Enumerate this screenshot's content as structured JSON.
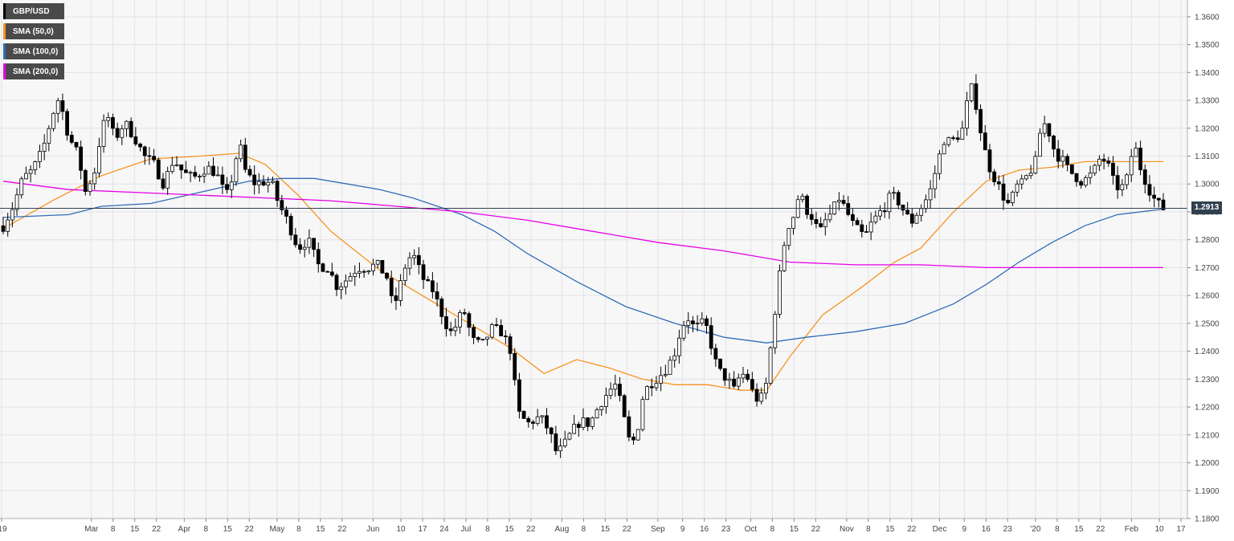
{
  "legend": [
    {
      "label": "GBP/USD",
      "color": "#000000"
    },
    {
      "label": "SMA (50,0)",
      "color": "#f7931e"
    },
    {
      "label": "SMA (100,0)",
      "color": "#2f6db5"
    },
    {
      "label": "SMA (200,0)",
      "color": "#e600e6"
    }
  ],
  "last_price_label": "1.2913",
  "colors": {
    "background": "#f7f7f8",
    "grid": "#e2e2e6",
    "up_candle": "#ffffff",
    "down_candle": "#000000",
    "price_line": "#30404f"
  },
  "chart_data": {
    "type": "candlestick",
    "instrument": "GBP/USD",
    "timeframe": "daily",
    "ylim": [
      1.18,
      1.366
    ],
    "y_ticks": [
      "1.1800",
      "1.1900",
      "1.2000",
      "1.2100",
      "1.2200",
      "1.2300",
      "1.2400",
      "1.2500",
      "1.2600",
      "1.2700",
      "1.2800",
      "1.2900",
      "1.3000",
      "1.3100",
      "1.3200",
      "1.3300",
      "1.3400",
      "1.3500",
      "1.3600"
    ],
    "x_ticks": [
      "'19",
      "Mar",
      "8",
      "15",
      "22",
      "Apr",
      "8",
      "15",
      "22",
      "May",
      "8",
      "15",
      "22",
      "Jun",
      "10",
      "17",
      "24",
      "Jul",
      "8",
      "15",
      "22",
      "Aug",
      "8",
      "15",
      "22",
      "Sep",
      "9",
      "16",
      "23",
      "Oct",
      "8",
      "15",
      "22",
      "Nov",
      "8",
      "15",
      "22",
      "Dec",
      "9",
      "16",
      "23",
      "'20",
      "8",
      "15",
      "22",
      "Feb",
      "10",
      "17"
    ],
    "last_price": 1.2913,
    "grid": true,
    "legend_position": "top-left",
    "price_path": [
      [
        0,
        1.285
      ],
      [
        3,
        1.292
      ],
      [
        6,
        1.302
      ],
      [
        9,
        1.305
      ],
      [
        12,
        1.312
      ],
      [
        15,
        1.325
      ],
      [
        17,
        1.331
      ],
      [
        20,
        1.317
      ],
      [
        23,
        1.31
      ],
      [
        25,
        1.297
      ],
      [
        28,
        1.305
      ],
      [
        30,
        1.32
      ],
      [
        32,
        1.324
      ],
      [
        34,
        1.316
      ],
      [
        37,
        1.322
      ],
      [
        40,
        1.317
      ],
      [
        43,
        1.31
      ],
      [
        46,
        1.307
      ],
      [
        49,
        1.3
      ],
      [
        52,
        1.309
      ],
      [
        55,
        1.304
      ],
      [
        58,
        1.302
      ],
      [
        62,
        1.306
      ],
      [
        65,
        1.304
      ],
      [
        68,
        1.295
      ],
      [
        70,
        1.303
      ],
      [
        72,
        1.315
      ],
      [
        74,
        1.304
      ],
      [
        77,
        1.3
      ],
      [
        80,
        1.301
      ],
      [
        82,
        1.3
      ],
      [
        84,
        1.293
      ],
      [
        87,
        1.286
      ],
      [
        90,
        1.277
      ],
      [
        93,
        1.28
      ],
      [
        96,
        1.271
      ],
      [
        99,
        1.27
      ],
      [
        102,
        1.263
      ],
      [
        105,
        1.266
      ],
      [
        108,
        1.27
      ],
      [
        111,
        1.27
      ],
      [
        114,
        1.271
      ],
      [
        117,
        1.267
      ],
      [
        119,
        1.255
      ],
      [
        121,
        1.263
      ],
      [
        123,
        1.272
      ],
      [
        125,
        1.275
      ],
      [
        127,
        1.269
      ],
      [
        129,
        1.264
      ],
      [
        131,
        1.262
      ],
      [
        133,
        1.256
      ],
      [
        135,
        1.25
      ],
      [
        137,
        1.246
      ],
      [
        139,
        1.252
      ],
      [
        141,
        1.254
      ],
      [
        143,
        1.244
      ],
      [
        146,
        1.242
      ],
      [
        149,
        1.248
      ],
      [
        152,
        1.247
      ],
      [
        155,
        1.24
      ],
      [
        157,
        1.218
      ],
      [
        160,
        1.214
      ],
      [
        163,
        1.216
      ],
      [
        165,
        1.215
      ],
      [
        167,
        1.21
      ],
      [
        169,
        1.203
      ],
      [
        171,
        1.206
      ],
      [
        173,
        1.21
      ],
      [
        176,
        1.215
      ],
      [
        179,
        1.214
      ],
      [
        182,
        1.221
      ],
      [
        185,
        1.226
      ],
      [
        187,
        1.228
      ],
      [
        189,
        1.218
      ],
      [
        191,
        1.208
      ],
      [
        193,
        1.208
      ],
      [
        195,
        1.223
      ],
      [
        197,
        1.228
      ],
      [
        199,
        1.23
      ],
      [
        201,
        1.232
      ],
      [
        203,
        1.235
      ],
      [
        205,
        1.24
      ],
      [
        207,
        1.249
      ],
      [
        209,
        1.252
      ],
      [
        211,
        1.248
      ],
      [
        213,
        1.25
      ],
      [
        215,
        1.248
      ],
      [
        217,
        1.237
      ],
      [
        219,
        1.232
      ],
      [
        221,
        1.23
      ],
      [
        223,
        1.226
      ],
      [
        225,
        1.232
      ],
      [
        227,
        1.231
      ],
      [
        229,
        1.224
      ],
      [
        231,
        1.222
      ],
      [
        233,
        1.229
      ],
      [
        235,
        1.25
      ],
      [
        237,
        1.268
      ],
      [
        239,
        1.284
      ],
      [
        241,
        1.288
      ],
      [
        243,
        1.297
      ],
      [
        245,
        1.291
      ],
      [
        247,
        1.288
      ],
      [
        249,
        1.282
      ],
      [
        251,
        1.287
      ],
      [
        253,
        1.29
      ],
      [
        255,
        1.295
      ],
      [
        257,
        1.291
      ],
      [
        259,
        1.286
      ],
      [
        261,
        1.283
      ],
      [
        263,
        1.281
      ],
      [
        265,
        1.286
      ],
      [
        267,
        1.289
      ],
      [
        269,
        1.292
      ],
      [
        271,
        1.296
      ],
      [
        273,
        1.294
      ],
      [
        275,
        1.29
      ],
      [
        277,
        1.286
      ],
      [
        279,
        1.29
      ],
      [
        281,
        1.293
      ],
      [
        283,
        1.298
      ],
      [
        285,
        1.307
      ],
      [
        287,
        1.316
      ],
      [
        289,
        1.315
      ],
      [
        291,
        1.317
      ],
      [
        293,
        1.32
      ],
      [
        295,
        1.336
      ],
      [
        297,
        1.328
      ],
      [
        299,
        1.314
      ],
      [
        301,
        1.306
      ],
      [
        303,
        1.301
      ],
      [
        305,
        1.296
      ],
      [
        307,
        1.292
      ],
      [
        309,
        1.299
      ],
      [
        311,
        1.3
      ],
      [
        313,
        1.304
      ],
      [
        315,
        1.308
      ],
      [
        317,
        1.323
      ],
      [
        319,
        1.319
      ],
      [
        321,
        1.311
      ],
      [
        323,
        1.309
      ],
      [
        325,
        1.305
      ],
      [
        327,
        1.303
      ],
      [
        329,
        1.301
      ],
      [
        331,
        1.302
      ],
      [
        333,
        1.305
      ],
      [
        335,
        1.31
      ],
      [
        337,
        1.307
      ],
      [
        339,
        1.3
      ],
      [
        341,
        1.298
      ],
      [
        343,
        1.302
      ],
      [
        345,
        1.315
      ],
      [
        347,
        1.306
      ],
      [
        349,
        1.3
      ],
      [
        351,
        1.295
      ],
      [
        353,
        1.292
      ],
      [
        354,
        1.2913
      ]
    ],
    "series": [
      {
        "name": "SMA (50,0)",
        "color": "#f7931e",
        "points": [
          [
            0,
            1.284
          ],
          [
            15,
            1.294
          ],
          [
            30,
            1.303
          ],
          [
            45,
            1.309
          ],
          [
            60,
            1.31
          ],
          [
            72,
            1.311
          ],
          [
            80,
            1.307
          ],
          [
            90,
            1.296
          ],
          [
            100,
            1.283
          ],
          [
            115,
            1.269
          ],
          [
            125,
            1.262
          ],
          [
            135,
            1.255
          ],
          [
            145,
            1.248
          ],
          [
            155,
            1.241
          ],
          [
            165,
            1.232
          ],
          [
            175,
            1.237
          ],
          [
            185,
            1.234
          ],
          [
            195,
            1.23
          ],
          [
            205,
            1.228
          ],
          [
            215,
            1.228
          ],
          [
            225,
            1.226
          ],
          [
            233,
            1.226
          ],
          [
            240,
            1.238
          ],
          [
            250,
            1.253
          ],
          [
            262,
            1.263
          ],
          [
            272,
            1.272
          ],
          [
            280,
            1.277
          ],
          [
            290,
            1.29
          ],
          [
            300,
            1.301
          ],
          [
            310,
            1.305
          ],
          [
            320,
            1.306
          ],
          [
            330,
            1.308
          ],
          [
            340,
            1.308
          ],
          [
            354,
            1.308
          ]
        ]
      },
      {
        "name": "SMA (100,0)",
        "color": "#2f6db5",
        "points": [
          [
            0,
            1.288
          ],
          [
            20,
            1.289
          ],
          [
            30,
            1.292
          ],
          [
            45,
            1.293
          ],
          [
            60,
            1.297
          ],
          [
            75,
            1.301
          ],
          [
            85,
            1.302
          ],
          [
            95,
            1.302
          ],
          [
            105,
            1.3
          ],
          [
            115,
            1.298
          ],
          [
            125,
            1.295
          ],
          [
            140,
            1.289
          ],
          [
            150,
            1.283
          ],
          [
            160,
            1.275
          ],
          [
            175,
            1.265
          ],
          [
            190,
            1.256
          ],
          [
            205,
            1.25
          ],
          [
            220,
            1.245
          ],
          [
            233,
            1.243
          ],
          [
            245,
            1.245
          ],
          [
            260,
            1.247
          ],
          [
            275,
            1.25
          ],
          [
            290,
            1.257
          ],
          [
            300,
            1.264
          ],
          [
            310,
            1.272
          ],
          [
            320,
            1.279
          ],
          [
            330,
            1.285
          ],
          [
            340,
            1.289
          ],
          [
            354,
            1.291
          ]
        ]
      },
      {
        "name": "SMA (200,0)",
        "color": "#e600e6",
        "points": [
          [
            0,
            1.301
          ],
          [
            20,
            1.298
          ],
          [
            40,
            1.297
          ],
          [
            60,
            1.296
          ],
          [
            80,
            1.295
          ],
          [
            100,
            1.294
          ],
          [
            120,
            1.292
          ],
          [
            140,
            1.29
          ],
          [
            160,
            1.287
          ],
          [
            180,
            1.283
          ],
          [
            200,
            1.279
          ],
          [
            220,
            1.276
          ],
          [
            240,
            1.272
          ],
          [
            260,
            1.271
          ],
          [
            280,
            1.271
          ],
          [
            300,
            1.27
          ],
          [
            320,
            1.27
          ],
          [
            340,
            1.27
          ],
          [
            354,
            1.27
          ]
        ]
      }
    ]
  }
}
